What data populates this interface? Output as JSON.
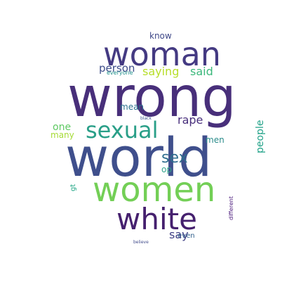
{
  "wordcloud": {
    "words": [
      {
        "text": "wrong",
        "color": "#482f7a"
      },
      {
        "text": "world",
        "color": "#3f4f8c"
      },
      {
        "text": "woman",
        "color": "#443a82"
      },
      {
        "text": "women",
        "color": "#73cf56"
      },
      {
        "text": "white",
        "color": "#45206e"
      },
      {
        "text": "sexual",
        "color": "#2a9f88"
      },
      {
        "text": "sex",
        "color": "#2f6d8e"
      },
      {
        "text": "saying",
        "color": "#b7de29"
      },
      {
        "text": "said",
        "color": "#3bb87b"
      },
      {
        "text": "person",
        "color": "#3d4d89"
      },
      {
        "text": "know",
        "color": "#3f4888"
      },
      {
        "text": "rape",
        "color": "#472d7b"
      },
      {
        "text": "mean",
        "color": "#2c728e"
      },
      {
        "text": "one",
        "color": "#5ec962"
      },
      {
        "text": "many",
        "color": "#a5db36"
      },
      {
        "text": "men",
        "color": "#2a8b8a"
      },
      {
        "text": "op",
        "color": "#32a38b"
      },
      {
        "text": "say",
        "color": "#3f3f85"
      },
      {
        "text": "even",
        "color": "#34618d"
      },
      {
        "text": "people",
        "color": "#1fa187"
      },
      {
        "text": "everyone",
        "color": "#21918c"
      },
      {
        "text": "black",
        "color": "#3b528b"
      },
      {
        "text": "gt",
        "color": "#21a685"
      },
      {
        "text": "different",
        "color": "#48167a"
      },
      {
        "text": "believe",
        "color": "#3f4a8a"
      }
    ]
  }
}
